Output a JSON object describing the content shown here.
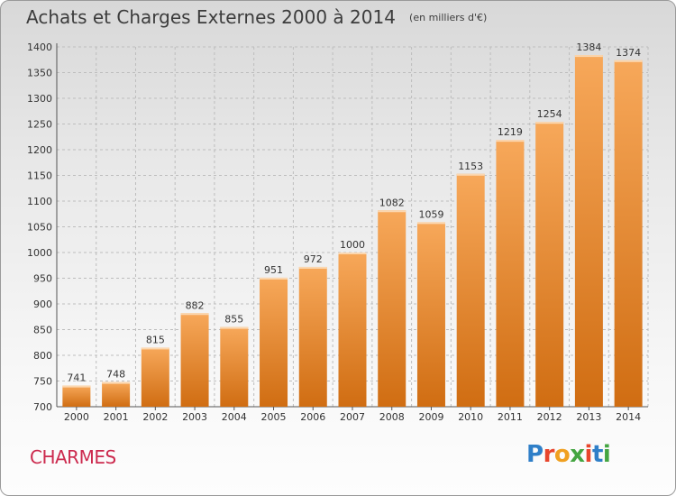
{
  "header": {
    "title": "Achats et Charges Externes 2000 à 2014",
    "unit": "(en milliers d'€)"
  },
  "footer": {
    "commune": "CHARMES",
    "logo_text": "Proxiti"
  },
  "colors": {
    "bar_light": "#f7a85a",
    "bar_dark": "#d06d12",
    "grid": "#bdbdbd",
    "commune": "#cc2a4e"
  },
  "chart_data": {
    "type": "bar",
    "title": "Achats et Charges Externes 2000 à 2014",
    "subtitle": "(en milliers d'€)",
    "categories": [
      "2000",
      "2001",
      "2002",
      "2003",
      "2004",
      "2005",
      "2006",
      "2007",
      "2008",
      "2009",
      "2010",
      "2011",
      "2012",
      "2013",
      "2014"
    ],
    "values": [
      741,
      748,
      815,
      882,
      855,
      951,
      972,
      1000,
      1082,
      1059,
      1153,
      1219,
      1254,
      1384,
      1374
    ],
    "ylim": [
      700,
      1400
    ],
    "yticks": [
      700,
      750,
      800,
      850,
      900,
      950,
      1000,
      1050,
      1100,
      1150,
      1200,
      1250,
      1300,
      1350,
      1400
    ],
    "grid": "horizontal dashed",
    "legend": "none",
    "data_labels": true
  }
}
